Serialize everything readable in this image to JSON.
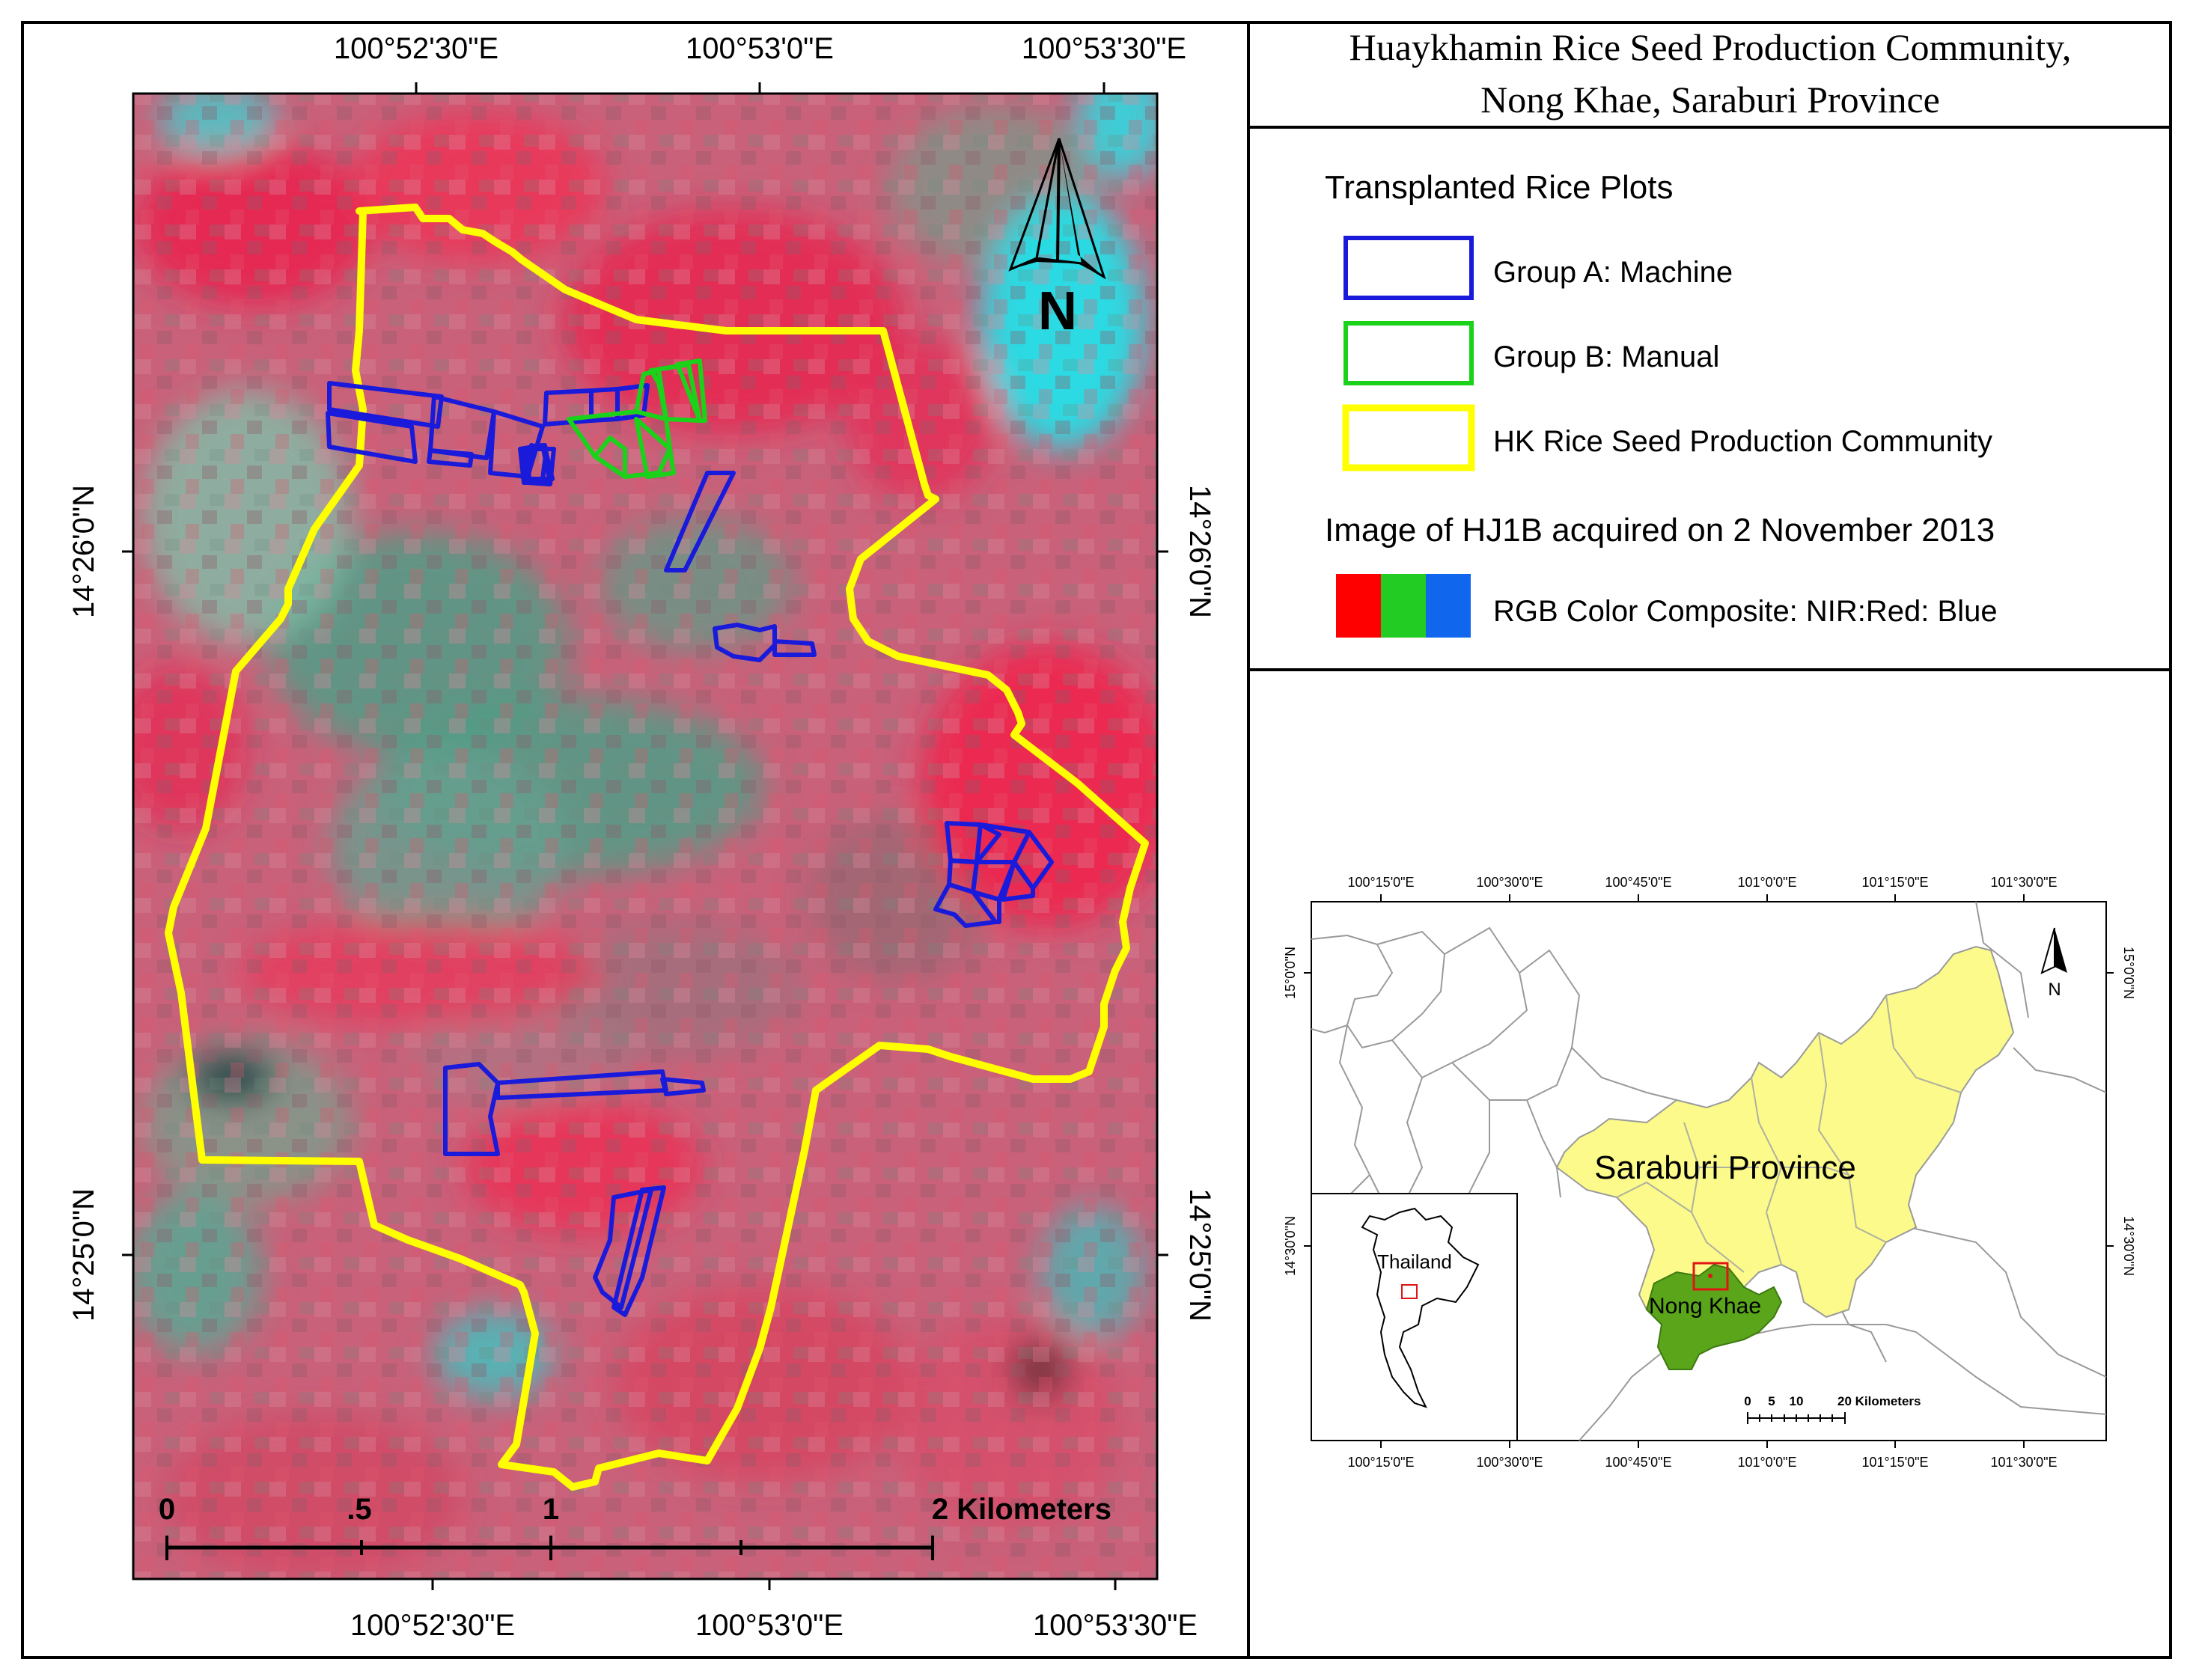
{
  "title": {
    "line1": "Huaykhamin Rice Seed Production Community,",
    "line2": "Nong Khae, Saraburi Province"
  },
  "legend": {
    "heading": "Transplanted Rice Plots",
    "items": [
      {
        "label": "Group A: Machine",
        "color": "#1a1adb"
      },
      {
        "label": "Group B: Manual",
        "color": "#1ad21a"
      },
      {
        "label": "HK Rice Seed Production Community",
        "color": "#ffff00"
      }
    ],
    "image_heading": "Image of HJ1B acquired on 2 November 2013",
    "composite_label": "RGB Color Composite: NIR:Red: Blue",
    "composite_colors": [
      "#ff0000",
      "#22cc22",
      "#1166ee"
    ]
  },
  "main_map": {
    "top_labels": [
      "100°52'30\"E",
      "100°53'0\"E",
      "100°53'30\"E"
    ],
    "bottom_labels": [
      "100°52'30\"E",
      "100°53'0\"E",
      "100°53'30\"E"
    ],
    "left_labels": [
      "14°26'0\"N",
      "14°25'0\"N"
    ],
    "right_labels": [
      "14°26'0\"N",
      "14°25'0\"N"
    ],
    "north_label": "N",
    "scale": {
      "ticks": [
        "0",
        ".5",
        "1",
        "2 Kilometers"
      ]
    },
    "colors": {
      "background": "#c9617a",
      "vegetation": "#e8254f",
      "water": "#22e0e8",
      "bare": "#4f9e86",
      "community": "#ffff00",
      "group_a": "#1a1adb",
      "group_b": "#1ad21a"
    }
  },
  "inset_map": {
    "top_labels": [
      "100°15'0\"E",
      "100°30'0\"E",
      "100°45'0\"E",
      "101°0'0\"E",
      "101°15'0\"E",
      "101°30'0\"E"
    ],
    "bottom_labels": [
      "100°15'0\"E",
      "100°30'0\"E",
      "100°45'0\"E",
      "101°0'0\"E",
      "101°15'0\"E",
      "101°30'0\"E"
    ],
    "left_labels": [
      "15°0'0\"N",
      "14°30'0\"N"
    ],
    "right_labels": [
      "15°0'0\"N",
      "14°30'0\"N"
    ],
    "province_label": "Saraburi Province",
    "district_label": "Nong Khae",
    "country_label": "Thailand",
    "north_label": "N",
    "scale": {
      "ticks": [
        "0",
        "5",
        "10",
        "20 Kilometers"
      ]
    },
    "colors": {
      "province": "#fbfa8a",
      "district": "#5aa51a",
      "locator": "#e01515"
    }
  }
}
